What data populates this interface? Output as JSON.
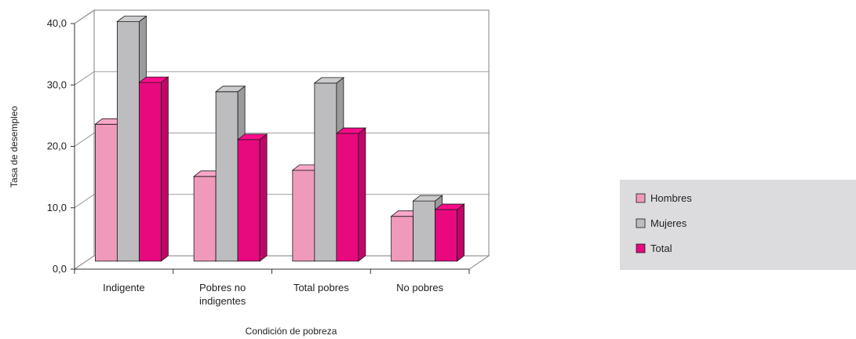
{
  "chart_data": {
    "type": "bar",
    "style": "3d-clustered-column",
    "categories": [
      "Indigente",
      "Pobres no indigentes",
      "Total pobres",
      "No pobres"
    ],
    "series": [
      {
        "name": "Hombres",
        "color": "#f09abb",
        "values": [
          22.3,
          13.8,
          14.8,
          7.3
        ]
      },
      {
        "name": "Mujeres",
        "color": "#bdbdc0",
        "values": [
          39.0,
          27.6,
          29.0,
          9.8
        ]
      },
      {
        "name": "Total",
        "color": "#e8097f",
        "values": [
          29.1,
          19.8,
          20.8,
          8.4
        ]
      }
    ],
    "y_ticks": [
      "0,0",
      "10,0",
      "20,0",
      "30,0",
      "40,0"
    ],
    "ylim": [
      0,
      40
    ],
    "xlabel": "Condición de pobreza",
    "ylabel": "Tasa de desempleo",
    "grid": true,
    "legend_position": "right",
    "legend_background": "#dcdcde"
  }
}
